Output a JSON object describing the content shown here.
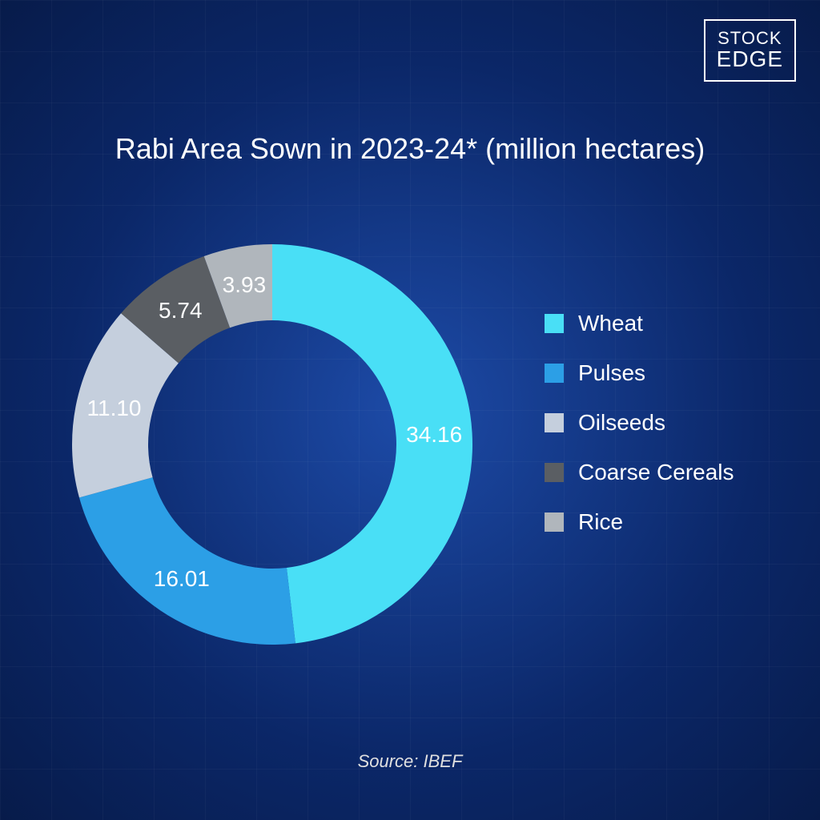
{
  "logo": {
    "top": "STOCK",
    "bottom": "EDGE"
  },
  "title": "Rabi Area Sown in 2023-24* (million hectares)",
  "source": "Source: IBEF",
  "chart": {
    "type": "donut",
    "background_gradient": {
      "center": "#1d4ba8",
      "mid": "#0b2768",
      "edge": "#071b4a"
    },
    "grid_color": "rgba(255,255,255,0.03)",
    "inner_radius_ratio": 0.62,
    "outer_radius": 250,
    "label_fontsize": 28,
    "label_color": "#ffffff",
    "start_angle_deg": 90,
    "slices": [
      {
        "name": "Wheat",
        "value": 34.16,
        "color": "#49dff6"
      },
      {
        "name": "Pulses",
        "value": 16.01,
        "color": "#2c9fe6"
      },
      {
        "name": "Oilseeds",
        "value": 11.1,
        "color": "#c5cfdd"
      },
      {
        "name": "Coarse Cereals",
        "value": 5.74,
        "color": "#5a5e63"
      },
      {
        "name": "Rice",
        "value": 3.93,
        "color": "#b0b6bc"
      }
    ]
  },
  "legend": {
    "swatch_size": 24,
    "fontsize": 28,
    "text_color": "#ffffff",
    "item_gap": 30
  }
}
